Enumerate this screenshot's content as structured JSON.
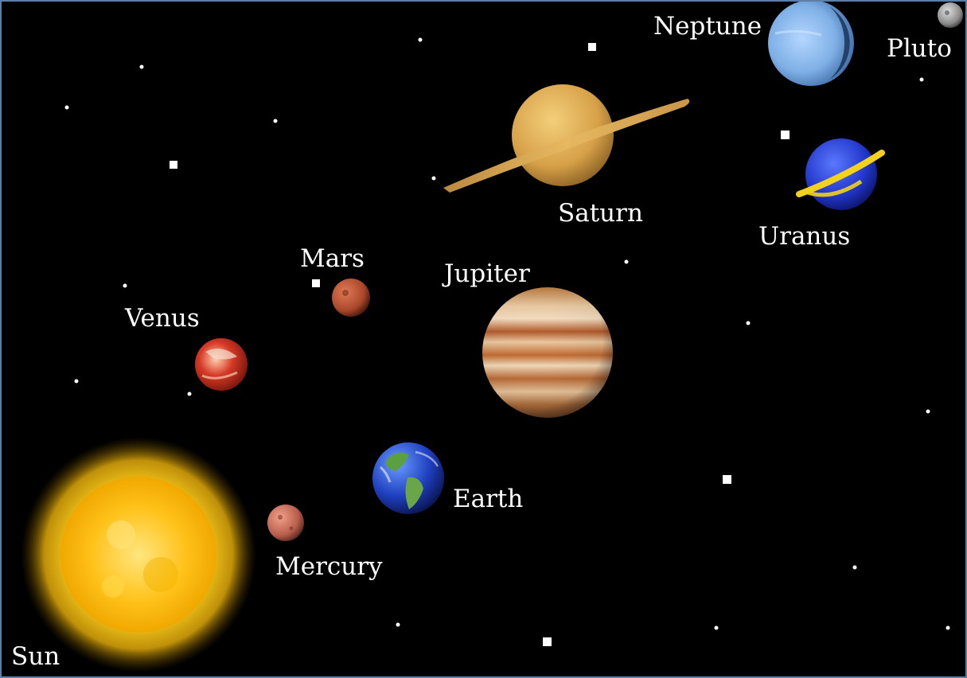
{
  "labels": {
    "sun": "Sun",
    "mercury": "Mercury",
    "venus": "Venus",
    "earth": "Earth",
    "mars": "Mars",
    "jupiter": "Jupiter",
    "saturn": "Saturn",
    "uranus": "Uranus",
    "neptune": "Neptune",
    "pluto": "Pluto"
  },
  "colors": {
    "background": "#000000",
    "frame": "#5b7fa8",
    "label": "#ffffff",
    "sun": "#ffd21f",
    "mercury": "#c9705e",
    "venus": "#c8281e",
    "earth": "#1f3fbf",
    "mars": "#b9502f",
    "jupiter": "#c98a4c",
    "saturn": "#e0b050",
    "uranus": "#2136c9",
    "uranus_ring": "#f2d21a",
    "neptune": "#7fb0e6",
    "pluto": "#9a9a9a"
  }
}
